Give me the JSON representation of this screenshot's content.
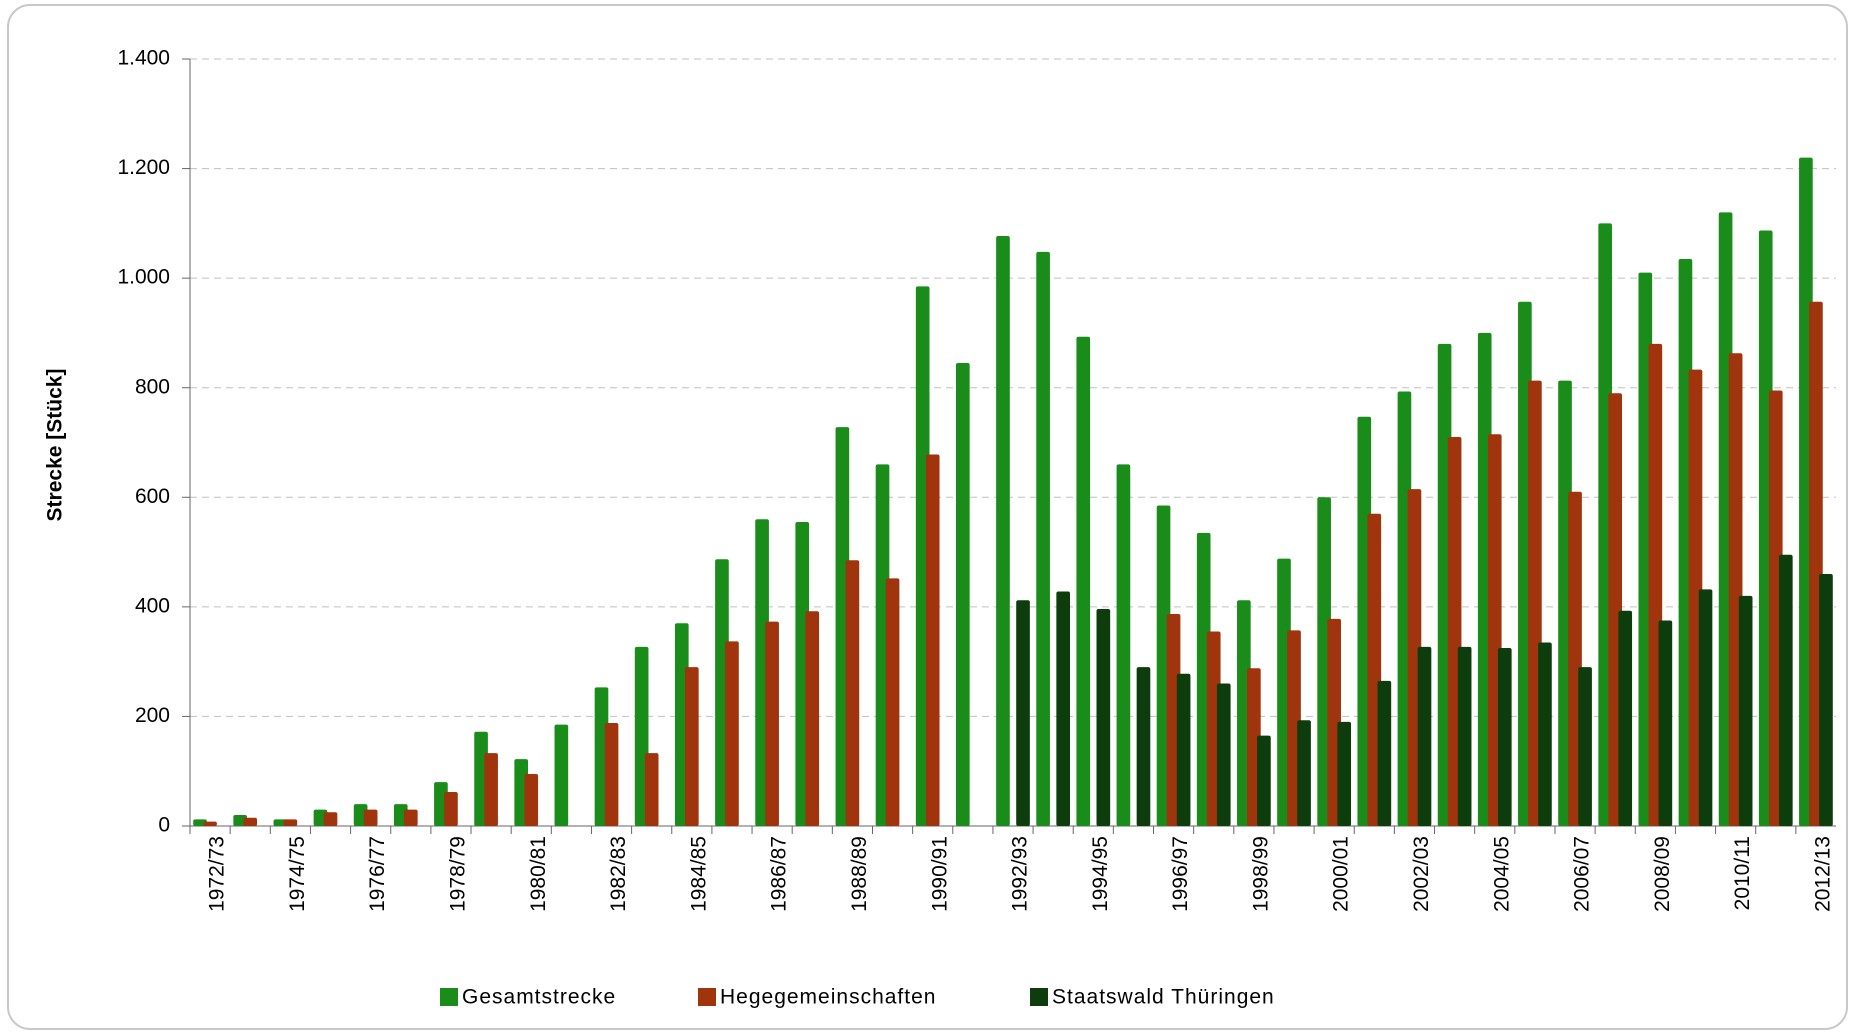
{
  "chart_data": {
    "type": "bar",
    "y_label": "Strecke [Stück]",
    "categories": [
      "1972/73",
      null,
      "1974/75",
      null,
      "1976/77",
      null,
      "1978/79",
      null,
      "1980/81",
      null,
      "1982/83",
      null,
      "1984/85",
      null,
      "1986/87",
      null,
      "1988/89",
      null,
      "1990/91",
      null,
      "1992/93",
      null,
      "1994/95",
      null,
      "1996/97",
      null,
      "1998/99",
      null,
      "2000/01",
      null,
      "2002/03",
      null,
      "2004/05",
      null,
      "2006/07",
      null,
      "2008/09",
      null,
      "2010/11",
      null,
      "2012/13"
    ],
    "series": [
      {
        "name": "Gesamtstrecke",
        "color": "#1a8c1a",
        "values": [
          12,
          20,
          12,
          30,
          40,
          40,
          80,
          172,
          122,
          185,
          253,
          327,
          370,
          487,
          560,
          555,
          728,
          660,
          985,
          845,
          1077,
          1048,
          893,
          660,
          585,
          535,
          412,
          488,
          600,
          747,
          793,
          880,
          900,
          957,
          813,
          1100,
          1010,
          1035,
          1120,
          1087,
          1220
        ]
      },
      {
        "name": "Hegegemeinschaften",
        "color": "#a0340c",
        "values": [
          8,
          15,
          12,
          25,
          30,
          30,
          62,
          133,
          95,
          null,
          188,
          133,
          290,
          337,
          373,
          392,
          485,
          452,
          678,
          null,
          null,
          null,
          null,
          null,
          387,
          355,
          288,
          357,
          378,
          570,
          615,
          710,
          715,
          813,
          610,
          790,
          880,
          833,
          863,
          795,
          957
        ]
      },
      {
        "name": "Staatswald Thüringen",
        "color": "#0d3d0d",
        "values": [
          null,
          null,
          null,
          null,
          null,
          null,
          null,
          null,
          null,
          null,
          null,
          null,
          null,
          null,
          null,
          null,
          null,
          null,
          null,
          null,
          412,
          428,
          396,
          290,
          278,
          260,
          165,
          193,
          190,
          265,
          327,
          327,
          325,
          335,
          290,
          393,
          375,
          432,
          420,
          495,
          460
        ]
      }
    ],
    "ylim": [
      0,
      1400
    ],
    "yticks": [
      0,
      200,
      400,
      600,
      800,
      {
        "value": 1000,
        "label": "1.000"
      },
      {
        "value": 1200,
        "label": "1.200"
      },
      {
        "value": 1400,
        "label": "1.400"
      }
    ],
    "grid": true
  }
}
